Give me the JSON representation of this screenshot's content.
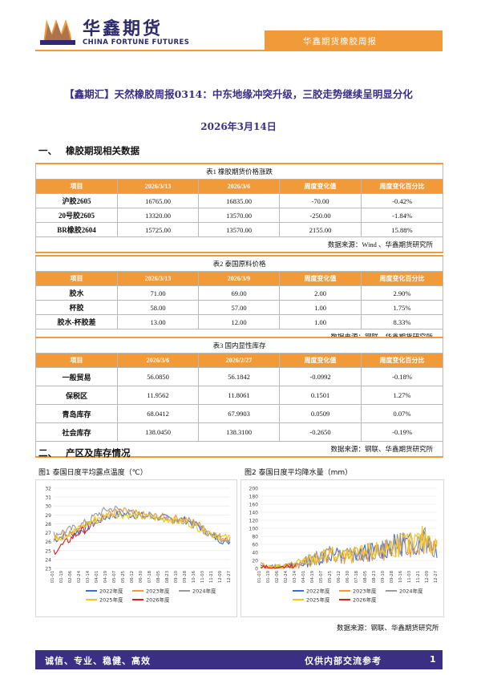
{
  "header": {
    "brand_cn": "华鑫期货",
    "brand_en": "CHINA FORTUNE FUTURES",
    "tab_label": "华鑫期货橡胶周报",
    "accent": "#f19a3a",
    "brand_color": "#2e2a6e"
  },
  "title": "【鑫期汇】天然橡胶周报0314：中东地缘冲突升级，三胶走势继续呈明显分化",
  "date": "2026年3月14日",
  "sections": {
    "s1": {
      "num": "一、",
      "title": "橡胶期现相关数据"
    },
    "s2": {
      "num": "二、",
      "title": "产区及库存情况"
    }
  },
  "table1": {
    "caption": "表1 橡胶期货价格涨跌",
    "headers": [
      "项目",
      "2026/3/13",
      "2026/3/6",
      "周度变化值",
      "周度变化百分比"
    ],
    "rows": [
      [
        "沪胶2605",
        "16765.00",
        "16835.00",
        "-70.00",
        "-0.42%"
      ],
      [
        "20号胶2605",
        "13320.00",
        "13570.00",
        "-250.00",
        "-1.84%"
      ],
      [
        "BR橡胶2604",
        "15725.00",
        "13570.00",
        "2155.00",
        "15.88%"
      ]
    ],
    "source": "数据来源：Wind 、华鑫期货研究所"
  },
  "table2": {
    "caption": "表2 泰国原料价格",
    "headers": [
      "项目",
      "2026/3/13",
      "2026/3/9",
      "周度变化值",
      "周度变化百分比"
    ],
    "rows": [
      [
        "胶水",
        "71.00",
        "69.00",
        "2.00",
        "2.90%"
      ],
      [
        "杯胶",
        "58.00",
        "57.00",
        "1.00",
        "1.75%"
      ],
      [
        "胶水-杯胶差",
        "13.00",
        "12.00",
        "1.00",
        "8.33%"
      ]
    ],
    "source": "数据来源：钢联、华鑫期货研究所"
  },
  "table3": {
    "caption": "表3 国内显性库存",
    "headers": [
      "项目",
      "2026/3/6",
      "2026/2/27",
      "周度变化值",
      "周度变化百分比"
    ],
    "rows": [
      [
        "一般贸易",
        "56.0850",
        "56.1842",
        "-0.0992",
        "-0.18%"
      ],
      [
        "保税区",
        "11.9562",
        "11.8061",
        "0.1501",
        "1.27%"
      ],
      [
        "青岛库存",
        "68.0412",
        "67.9903",
        "0.0509",
        "0.07%"
      ],
      [
        "社会库存",
        "138.0450",
        "138.3100",
        "-0.2650",
        "-0.19%"
      ]
    ],
    "source": "数据来源：钢联、华鑫期货研究所"
  },
  "chart_source": "数据来源：钢联、华鑫期货研究所",
  "chart_data": [
    {
      "type": "line",
      "title": "图1 泰国日度平均露点温度（℃）",
      "ylim": [
        23,
        32
      ],
      "yticks": [
        "23",
        "24",
        "25",
        "26",
        "27",
        "28",
        "29",
        "30",
        "31",
        "32"
      ],
      "xticks": [
        "01-01",
        "01-19",
        "02-06",
        "02-24",
        "03-14",
        "04-01",
        "04-19",
        "05-07",
        "05-25",
        "06-12",
        "06-30",
        "07-18",
        "08-05",
        "08-23",
        "09-10",
        "09-28",
        "10-16",
        "11-03",
        "11-21",
        "12-09",
        "12-27"
      ],
      "grid": true,
      "legend": "bottom",
      "series": [
        {
          "name": "2022年度",
          "color": "#3b6bd6",
          "base": [
            26.2,
            26.6,
            26.9,
            27.2,
            27.7,
            28.3,
            28.8,
            29.0,
            29.1,
            29.0,
            28.9,
            28.8,
            28.7,
            28.6,
            28.5,
            28.4,
            28.0,
            27.4,
            26.6,
            26.2,
            26.0
          ]
        },
        {
          "name": "2023年度",
          "color": "#f19a3a",
          "base": [
            26.4,
            26.8,
            27.2,
            27.6,
            28.0,
            28.5,
            29.0,
            29.3,
            29.4,
            29.2,
            29.0,
            28.9,
            28.8,
            28.7,
            28.6,
            28.5,
            28.1,
            27.6,
            26.9,
            26.5,
            26.3
          ]
        },
        {
          "name": "2024年度",
          "color": "#9a9a9a",
          "base": [
            26.8,
            27.1,
            27.4,
            27.8,
            28.4,
            29.1,
            29.6,
            29.7,
            29.4,
            29.1,
            29.0,
            28.9,
            28.8,
            28.6,
            28.5,
            28.3,
            27.9,
            27.3,
            26.7,
            26.4,
            26.2
          ]
        },
        {
          "name": "2025年度",
          "color": "#f5c518",
          "base": [
            26.3,
            26.6,
            27.0,
            27.5,
            28.1,
            28.7,
            29.0,
            29.1,
            29.0,
            28.9,
            28.8,
            28.7,
            28.6,
            28.5,
            28.3,
            28.2,
            27.8,
            27.3,
            26.8,
            26.5,
            26.4
          ]
        },
        {
          "name": "2026年度",
          "color": "#d6231e",
          "base": [
            24.9,
            25.6,
            26.4,
            27.1,
            27.5
          ]
        }
      ]
    },
    {
      "type": "line",
      "title": "图2 泰国日度平均降水量（mm）",
      "ylim": [
        0,
        200
      ],
      "yticks": [
        "0",
        "20",
        "40",
        "60",
        "80",
        "100",
        "120",
        "140",
        "160",
        "180",
        "200"
      ],
      "xticks": [
        "01-01",
        "01-19",
        "02-06",
        "02-24",
        "03-14",
        "04-01",
        "04-19",
        "05-07",
        "05-25",
        "06-12",
        "06-30",
        "07-18",
        "08-05",
        "08-23",
        "09-10",
        "09-28",
        "10-16",
        "11-03",
        "11-21",
        "12-09",
        "12-27"
      ],
      "grid": true,
      "legend": "bottom",
      "series": [
        {
          "name": "2022年度",
          "color": "#3b6bd6",
          "base": [
            5,
            3,
            2,
            4,
            8,
            15,
            22,
            28,
            35,
            33,
            30,
            35,
            40,
            42,
            48,
            55,
            62,
            60,
            70,
            80,
            50
          ]
        },
        {
          "name": "2023年度",
          "color": "#f19a3a",
          "base": [
            4,
            3,
            2,
            5,
            9,
            14,
            20,
            30,
            32,
            30,
            28,
            33,
            38,
            40,
            45,
            52,
            58,
            55,
            65,
            75,
            45
          ]
        },
        {
          "name": "2024年度",
          "color": "#9a9a9a",
          "base": [
            6,
            4,
            3,
            4,
            7,
            16,
            25,
            30,
            36,
            34,
            31,
            36,
            42,
            44,
            50,
            57,
            60,
            58,
            66,
            72,
            48
          ]
        },
        {
          "name": "2025年度",
          "color": "#f5c518",
          "base": [
            5,
            4,
            3,
            5,
            10,
            17,
            24,
            29,
            34,
            32,
            29,
            34,
            39,
            43,
            47,
            54,
            61,
            59,
            68,
            78,
            52
          ]
        },
        {
          "name": "2026年度",
          "color": "#d6231e",
          "base": [
            3,
            2,
            1,
            2,
            4
          ]
        }
      ]
    }
  ],
  "footer": {
    "left": "诚信、专业、稳健、高效",
    "right": "仅供内部交流参考",
    "page": "1",
    "bar_color": "#3b2f85"
  }
}
